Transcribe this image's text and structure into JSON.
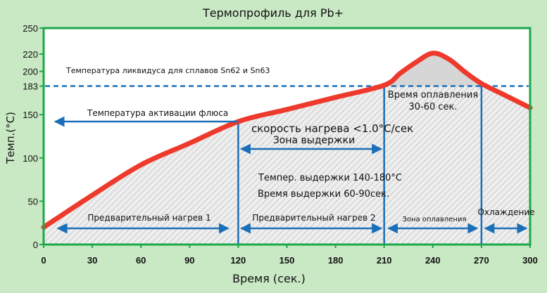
{
  "chart_data": {
    "type": "line",
    "title": "Термопрофиль для Pb+",
    "xlabel": "Время (сек.)",
    "ylabel": "Темп.(°C)",
    "xlim": [
      0,
      300
    ],
    "ylim": [
      0,
      250
    ],
    "x_ticks": [
      0,
      30,
      60,
      90,
      120,
      150,
      180,
      210,
      240,
      270,
      300
    ],
    "y_ticks": [
      0,
      50,
      100,
      150,
      183,
      200,
      220,
      250
    ],
    "grid": false,
    "series": [
      {
        "x": [
          0,
          30,
          60,
          90,
          120,
          150,
          180,
          210,
          220,
          230,
          240,
          250,
          260,
          270,
          285,
          300
        ],
        "y": [
          20,
          57,
          92,
          117,
          142,
          156,
          170,
          184,
          198,
          211,
          221,
          214,
          199,
          186,
          172,
          158
        ]
      }
    ],
    "reference_lines": [
      {
        "value": 183,
        "orientation": "horizontal",
        "style": "dashed",
        "label": "Температура ликвидуса для сплавов Sn62 и Sn63"
      },
      {
        "value": 120,
        "orientation": "vertical"
      },
      {
        "value": 210,
        "orientation": "vertical"
      },
      {
        "value": 270,
        "orientation": "vertical"
      }
    ],
    "annotations": {
      "flux_activation": "Температура активации флюса",
      "heating_rate": "скорость нагрева <1.0°C/сек",
      "soak_zone": "Зона выдержки",
      "soak_temp": "Темпер. выдержки 140-180°C",
      "soak_time": "Время выдержки 60-90сек.",
      "reflow_time_line1": "Время оплавления",
      "reflow_time_line2": "30-60 сек.",
      "preheat1": "Предварительный нагрев 1",
      "preheat2": "Предварительный нагрев 2",
      "reflow_zone": "Зона оплавления",
      "cooling": "Охлаждение"
    },
    "colors": {
      "curve": "#ee3a2c",
      "axes": "#1ba84a",
      "reference": "#1a6fb8",
      "background": "#c9e8c4",
      "plot_background": "#ffffff",
      "fill": "#d6d6d6"
    }
  }
}
